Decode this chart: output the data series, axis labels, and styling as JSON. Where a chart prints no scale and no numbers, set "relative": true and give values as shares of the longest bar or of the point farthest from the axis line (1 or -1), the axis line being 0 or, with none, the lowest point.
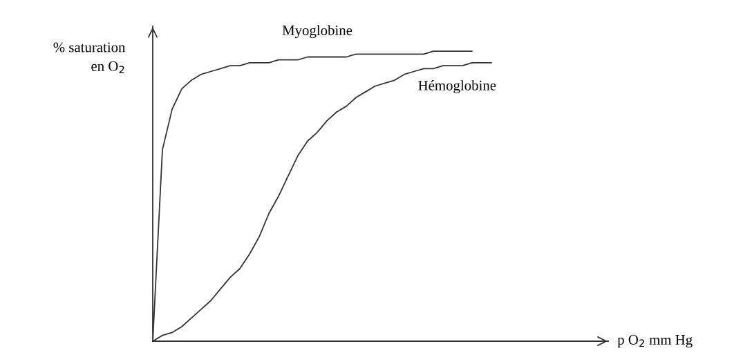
{
  "chart_data": {
    "type": "line",
    "relative": true,
    "annotations": [
      "p O$_{2}$ mm Hg"
    ],
    "ylabel": "% saturation\nen O$_{2}$",
    "categories": [
      null,
      null,
      null,
      null,
      null,
      null,
      null,
      null,
      null,
      null,
      null,
      null,
      null,
      null,
      null,
      null,
      null,
      null,
      null,
      null,
      null,
      null,
      null,
      null,
      null,
      null,
      null,
      null,
      null,
      null,
      null,
      null,
      null,
      null,
      null,
      null
    ],
    "series": [
      {
        "name": "Myoglobine",
        "color": "#333333",
        "values": [
          0,
          0.66,
          0.8,
          0.87,
          0.9,
          0.92,
          0.93,
          0.94,
          0.95,
          0.95,
          0.96,
          0.96,
          0.96,
          0.97,
          0.97,
          0.97,
          0.98,
          0.98,
          0.98,
          0.98,
          0.98,
          0.99,
          0.99,
          0.99,
          0.99,
          0.99,
          0.99,
          0.99,
          0.99,
          1.0,
          1.0,
          1.0,
          1.0,
          1.0,
          null,
          null
        ]
      },
      {
        "name": "Hémoglobine",
        "color": "#333333",
        "values": [
          0,
          0.02,
          0.03,
          0.05,
          0.08,
          0.11,
          0.14,
          0.18,
          0.22,
          0.25,
          0.3,
          0.36,
          0.44,
          0.5,
          0.57,
          0.64,
          0.69,
          0.72,
          0.76,
          0.79,
          0.81,
          0.84,
          0.86,
          0.88,
          0.89,
          0.9,
          0.92,
          0.93,
          0.94,
          0.94,
          0.95,
          0.95,
          0.95,
          0.96,
          0.96,
          0.96
        ]
      }
    ],
    "grid": false,
    "legend": false,
    "marker": "none",
    "line_style": "solid"
  }
}
